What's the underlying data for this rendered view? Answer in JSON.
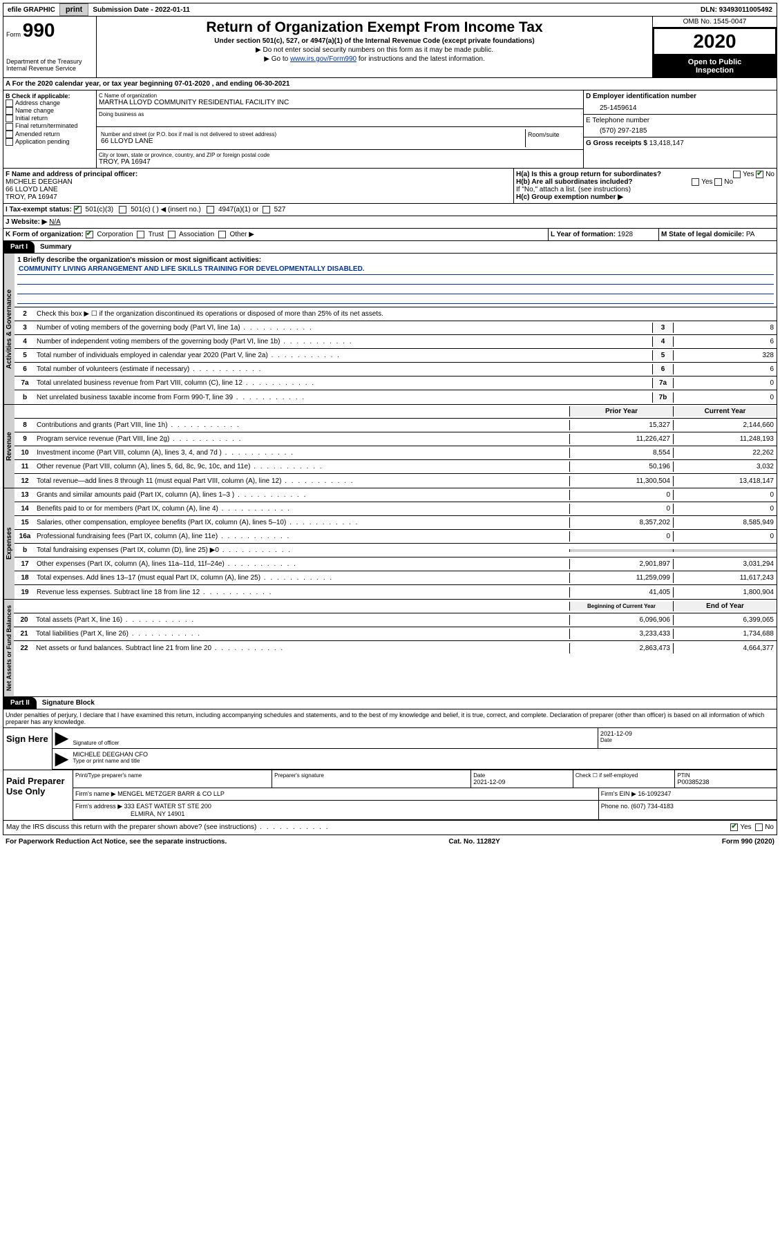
{
  "topbar": {
    "efile": "efile GRAPHIC",
    "print": "print",
    "submission": "Submission Date - 2022-01-11",
    "dln": "DLN: 93493011005492"
  },
  "header": {
    "form_prefix": "Form",
    "form_number": "990",
    "dept1": "Department of the Treasury",
    "dept2": "Internal Revenue Service",
    "title": "Return of Organization Exempt From Income Tax",
    "sub1": "Under section 501(c), 527, or 4947(a)(1) of the Internal Revenue Code (except private foundations)",
    "sub2": "▶ Do not enter social security numbers on this form as it may be made public.",
    "sub3_pre": "▶ Go to ",
    "sub3_link": "www.irs.gov/Form990",
    "sub3_post": " for instructions and the latest information.",
    "omb": "OMB No. 1545-0047",
    "year": "2020",
    "inspection1": "Open to Public",
    "inspection2": "Inspection"
  },
  "period": {
    "text": "A For the 2020 calendar year, or tax year beginning 07-01-2020    , and ending 06-30-2021"
  },
  "box_b": {
    "title": "B Check if applicable:",
    "items": [
      "Address change",
      "Name change",
      "Initial return",
      "Final return/terminated",
      "Amended return",
      "Application pending"
    ]
  },
  "box_c": {
    "name_label": "C Name of organization",
    "name": "MARTHA LLOYD COMMUNITY RESIDENTIAL FACILITY INC",
    "dba_label": "Doing business as",
    "street_label": "Number and street (or P.O. box if mail is not delivered to street address)",
    "room_label": "Room/suite",
    "street": "66 LLOYD LANE",
    "city_label": "City or town, state or province, country, and ZIP or foreign postal code",
    "city": "TROY, PA  16947"
  },
  "box_d": {
    "label": "D Employer identification number",
    "value": "25-1459614"
  },
  "box_e": {
    "label": "E Telephone number",
    "value": "(570) 297-2185"
  },
  "box_g": {
    "label": "G Gross receipts $",
    "value": "13,418,147"
  },
  "box_f": {
    "label": "F Name and address of principal officer:",
    "name": "MICHELE DEEGHAN",
    "addr1": "66 LLOYD LANE",
    "addr2": "TROY, PA  16947"
  },
  "box_h": {
    "ha_label": "H(a)  Is this a group return for subordinates?",
    "hb_label": "H(b)  Are all subordinates included?",
    "hb_note": "If \"No,\" attach a list. (see instructions)",
    "hc_label": "H(c)  Group exemption number ▶",
    "yes": "Yes",
    "no": "No"
  },
  "box_i": {
    "label": "I  Tax-exempt status:",
    "opt1": "501(c)(3)",
    "opt2": "501(c) (   ) ◀ (insert no.)",
    "opt3": "4947(a)(1) or",
    "opt4": "527"
  },
  "box_j": {
    "label": "J  Website: ▶",
    "value": "N/A"
  },
  "box_k": {
    "label": "K Form of organization:",
    "opts": [
      "Corporation",
      "Trust",
      "Association",
      "Other ▶"
    ]
  },
  "box_l": {
    "label": "L Year of formation:",
    "value": "1928"
  },
  "box_m": {
    "label": "M State of legal domicile:",
    "value": "PA"
  },
  "part1": {
    "header": "Part I",
    "title": "Summary",
    "line1_label": "1  Briefly describe the organization's mission or most significant activities:",
    "mission": "COMMUNITY LIVING ARRANGEMENT AND LIFE SKILLS TRAINING FOR DEVELOPMENTALLY DISABLED.",
    "line2": "Check this box ▶ ☐  if the organization discontinued its operations or disposed of more than 25% of its net assets.",
    "vert_gov": "Activities & Governance",
    "vert_rev": "Revenue",
    "vert_exp": "Expenses",
    "vert_net": "Net Assets or Fund Balances",
    "lines_gov": [
      {
        "n": "3",
        "t": "Number of voting members of the governing body (Part VI, line 1a)",
        "box": "3",
        "v": "8"
      },
      {
        "n": "4",
        "t": "Number of independent voting members of the governing body (Part VI, line 1b)",
        "box": "4",
        "v": "6"
      },
      {
        "n": "5",
        "t": "Total number of individuals employed in calendar year 2020 (Part V, line 2a)",
        "box": "5",
        "v": "328"
      },
      {
        "n": "6",
        "t": "Total number of volunteers (estimate if necessary)",
        "box": "6",
        "v": "6"
      },
      {
        "n": "7a",
        "t": "Total unrelated business revenue from Part VIII, column (C), line 12",
        "box": "7a",
        "v": "0"
      },
      {
        "n": "b",
        "t": "Net unrelated business taxable income from Form 990-T, line 39",
        "box": "7b",
        "v": "0"
      }
    ],
    "prior_label": "Prior Year",
    "current_label": "Current Year",
    "lines_rev": [
      {
        "n": "8",
        "t": "Contributions and grants (Part VIII, line 1h)",
        "p": "15,327",
        "c": "2,144,660"
      },
      {
        "n": "9",
        "t": "Program service revenue (Part VIII, line 2g)",
        "p": "11,226,427",
        "c": "11,248,193"
      },
      {
        "n": "10",
        "t": "Investment income (Part VIII, column (A), lines 3, 4, and 7d )",
        "p": "8,554",
        "c": "22,262"
      },
      {
        "n": "11",
        "t": "Other revenue (Part VIII, column (A), lines 5, 6d, 8c, 9c, 10c, and 11e)",
        "p": "50,196",
        "c": "3,032"
      },
      {
        "n": "12",
        "t": "Total revenue—add lines 8 through 11 (must equal Part VIII, column (A), line 12)",
        "p": "11,300,504",
        "c": "13,418,147"
      }
    ],
    "lines_exp": [
      {
        "n": "13",
        "t": "Grants and similar amounts paid (Part IX, column (A), lines 1–3 )",
        "p": "0",
        "c": "0"
      },
      {
        "n": "14",
        "t": "Benefits paid to or for members (Part IX, column (A), line 4)",
        "p": "0",
        "c": "0"
      },
      {
        "n": "15",
        "t": "Salaries, other compensation, employee benefits (Part IX, column (A), lines 5–10)",
        "p": "8,357,202",
        "c": "8,585,949"
      },
      {
        "n": "16a",
        "t": "Professional fundraising fees (Part IX, column (A), line 11e)",
        "p": "0",
        "c": "0"
      },
      {
        "n": "b",
        "t": "Total fundraising expenses (Part IX, column (D), line 25) ▶0",
        "p": "",
        "c": "",
        "shaded": true
      },
      {
        "n": "17",
        "t": "Other expenses (Part IX, column (A), lines 11a–11d, 11f–24e)",
        "p": "2,901,897",
        "c": "3,031,294"
      },
      {
        "n": "18",
        "t": "Total expenses. Add lines 13–17 (must equal Part IX, column (A), line 25)",
        "p": "11,259,099",
        "c": "11,617,243"
      },
      {
        "n": "19",
        "t": "Revenue less expenses. Subtract line 18 from line 12",
        "p": "41,405",
        "c": "1,800,904"
      }
    ],
    "beg_label": "Beginning of Current Year",
    "end_label": "End of Year",
    "lines_net": [
      {
        "n": "20",
        "t": "Total assets (Part X, line 16)",
        "p": "6,096,906",
        "c": "6,399,065"
      },
      {
        "n": "21",
        "t": "Total liabilities (Part X, line 26)",
        "p": "3,233,433",
        "c": "1,734,688"
      },
      {
        "n": "22",
        "t": "Net assets or fund balances. Subtract line 21 from line 20",
        "p": "2,863,473",
        "c": "4,664,377"
      }
    ]
  },
  "part2": {
    "header": "Part II",
    "title": "Signature Block",
    "penalty": "Under penalties of perjury, I declare that I have examined this return, including accompanying schedules and statements, and to the best of my knowledge and belief, it is true, correct, and complete. Declaration of preparer (other than officer) is based on all information of which preparer has any knowledge.",
    "sign_here": "Sign Here",
    "sig_officer": "Signature of officer",
    "sig_date": "2021-12-09",
    "date_label": "Date",
    "officer_name": "MICHELE DEEGHAN CFO",
    "type_label": "Type or print name and title",
    "paid": "Paid Preparer Use Only",
    "prep_name_label": "Print/Type preparer's name",
    "prep_sig_label": "Preparer's signature",
    "prep_date": "2021-12-09",
    "self_emp": "Check ☐ if self-employed",
    "ptin_label": "PTIN",
    "ptin": "P00385238",
    "firm_name_label": "Firm's name    ▶",
    "firm_name": "MENGEL METZGER BARR & CO LLP",
    "firm_ein_label": "Firm's EIN ▶",
    "firm_ein": "16-1092347",
    "firm_addr_label": "Firm's address ▶",
    "firm_addr1": "333 EAST WATER ST STE 200",
    "firm_addr2": "ELMIRA, NY  14901",
    "phone_label": "Phone no.",
    "phone": "(607) 734-4183",
    "discuss": "May the IRS discuss this return with the preparer shown above? (see instructions)",
    "yes": "Yes",
    "no": "No"
  },
  "footer": {
    "left": "For Paperwork Reduction Act Notice, see the separate instructions.",
    "center": "Cat. No. 11282Y",
    "right": "Form 990 (2020)"
  }
}
